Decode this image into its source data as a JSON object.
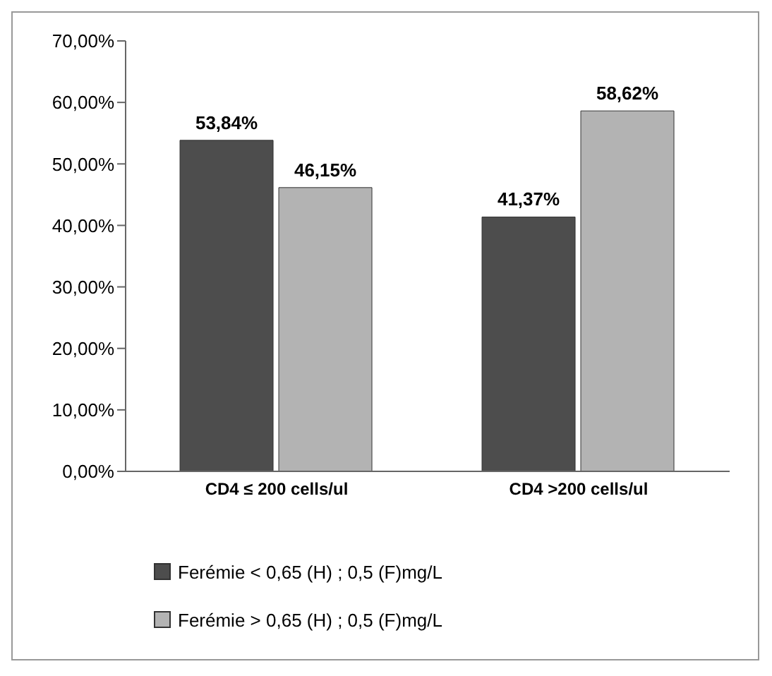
{
  "chart_data": {
    "type": "bar",
    "categories": [
      "CD4  ≤ 200 cells/ul",
      "CD4 >200 cells/ul"
    ],
    "series": [
      {
        "name": "Ferémie < 0,65 (H) ; 0,5 (F)mg/L",
        "color": "#4d4d4d",
        "values": [
          53.84,
          41.37
        ],
        "value_labels": [
          "53,84%",
          "41,37%"
        ]
      },
      {
        "name": "Ferémie > 0,65 (H) ; 0,5 (F)mg/L",
        "color": "#b3b3b3",
        "values": [
          46.15,
          58.62
        ],
        "value_labels": [
          "46,15%",
          "58,62%"
        ]
      }
    ],
    "ylim": [
      0,
      70
    ],
    "yticks": [
      {
        "value": 0,
        "label": "0,00%"
      },
      {
        "value": 10,
        "label": "10,00%"
      },
      {
        "value": 20,
        "label": "20,00%"
      },
      {
        "value": 30,
        "label": "30,00%"
      },
      {
        "value": 40,
        "label": "40,00%"
      },
      {
        "value": 50,
        "label": "50,00%"
      },
      {
        "value": 60,
        "label": "60,00%"
      },
      {
        "value": 70,
        "label": "70,00%"
      }
    ],
    "grid": false,
    "legend": "bottom"
  }
}
